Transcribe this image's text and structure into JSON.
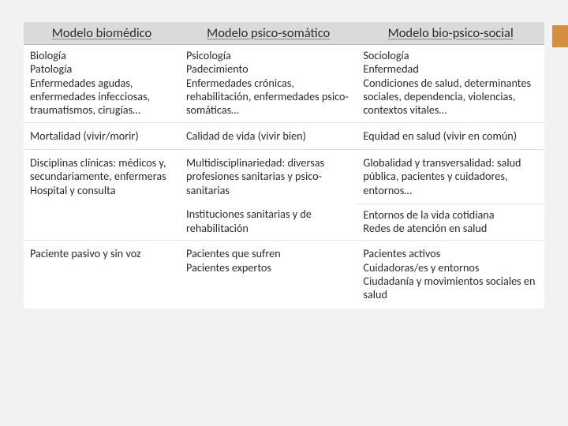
{
  "table": {
    "background_color": "#ffffff",
    "header_background": "#dadada",
    "page_background": "#f2f2f2",
    "accent_color": "#d38f3f",
    "text_color": "#2b2b2b",
    "font_family": "Calibri",
    "font_size_body": 14,
    "font_size_header": 16,
    "columns": [
      {
        "label": "Modelo biomédico",
        "width_pct": 30
      },
      {
        "label": "Modelo psico-somático",
        "width_pct": 34
      },
      {
        "label": "Modelo bio-psico-social",
        "width_pct": 36
      }
    ],
    "rows": [
      {
        "c1": "Biología\nPatología\nEnfermedades agudas, enfermedades infecciosas, traumatismos, cirugías…",
        "c2": "Psicología\nPadecimiento\nEnfermedades crónicas, rehabilitación, enfermedades psico-somáticas…",
        "c3": "Sociología\nEnfermedad\nCondiciones de salud, determinantes sociales, dependencia, violencias, contextos vitales…"
      },
      {
        "c1": "Mortalidad (vivir/morir)",
        "c2": "Calidad de vida (vivir bien)",
        "c3": "Equidad en salud (vivir en común)"
      },
      {
        "c1": "Disciplinas clínicas: médicos y, secundariamente, enfermeras\nHospital y consulta",
        "c1_rowspan": 2,
        "c2": "Multidisciplinariedad: diversas profesiones sanitarias y psico-sanitarias",
        "c3": "Globalidad y transversalidad: salud pública, pacientes y cuidadores, entornos…"
      },
      {
        "c2": "Instituciones sanitarias y de rehabilitación",
        "c3": "Entornos de la vida cotidiana\nRedes de atención en salud"
      },
      {
        "c1": "Paciente pasivo y sin voz",
        "c2": "Pacientes que sufren\nPacientes expertos",
        "c3": "Pacientes activos\nCuidadoras/es y entornos\nCiudadanía y movimientos sociales en salud"
      }
    ]
  }
}
